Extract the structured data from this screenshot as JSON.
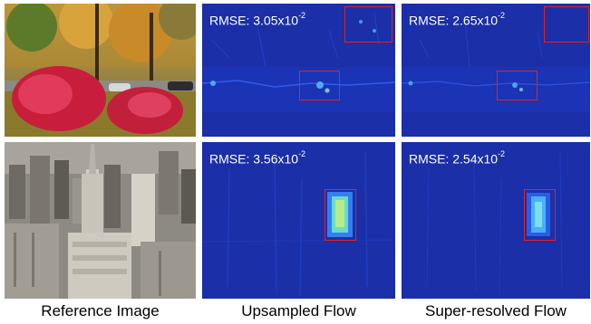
{
  "rows": [
    {
      "reference_scene": "park",
      "upsampled": {
        "rmse_mantissa": "RMSE: 3.05x10",
        "rmse_exponent": "-2"
      },
      "superresolved": {
        "rmse_mantissa": "RMSE: 2.65x10",
        "rmse_exponent": "-2"
      }
    },
    {
      "reference_scene": "city",
      "upsampled": {
        "rmse_mantissa": "RMSE: 3.56x10",
        "rmse_exponent": "-2"
      },
      "superresolved": {
        "rmse_mantissa": "RMSE: 2.54x10",
        "rmse_exponent": "-2"
      }
    }
  ],
  "captions": {
    "reference": "Reference Image",
    "upsampled": "Upsampled Flow",
    "superresolved": "Super-resolved Flow"
  },
  "colors": {
    "error_map_base": "#1a2fa8",
    "highlight_box": "#e0231e",
    "rmse_text": "#ffffff"
  }
}
